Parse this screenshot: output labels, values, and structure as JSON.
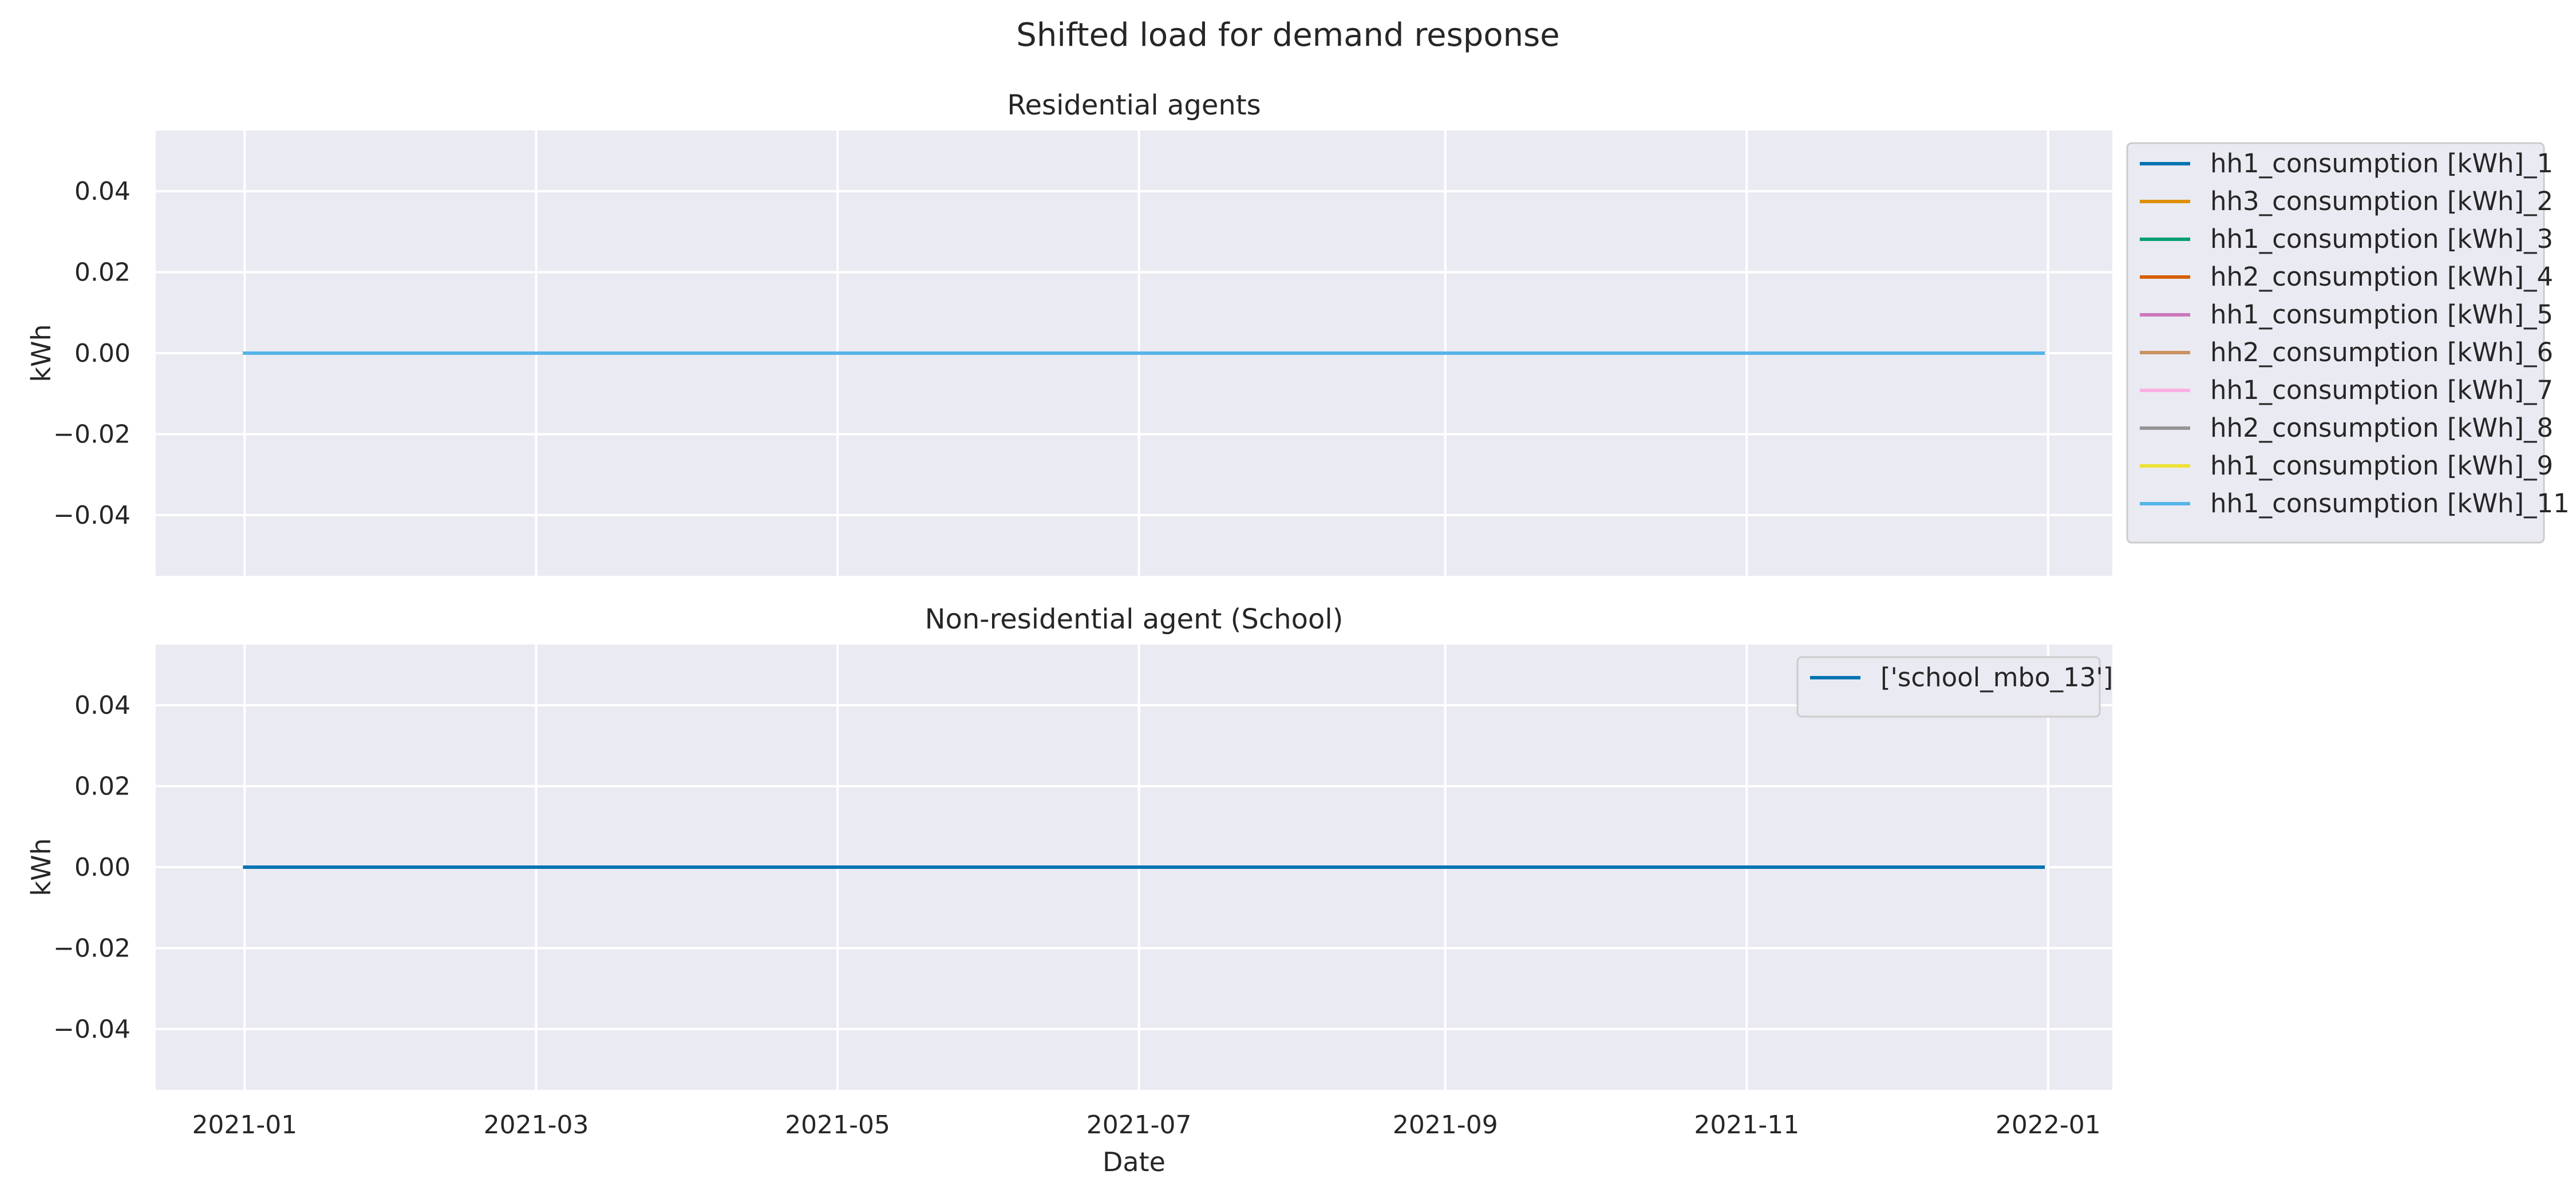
{
  "chart_data": [
    {
      "type": "line",
      "title": "Residential agents",
      "xlabel": "",
      "ylabel": "kWh",
      "xlim": [
        "2020-12-14",
        "2022-01-14"
      ],
      "ylim": [
        -0.055,
        0.055
      ],
      "yticks": [
        -0.04,
        -0.02,
        0.0,
        0.02,
        0.04
      ],
      "ytick_labels": [
        "−0.04",
        "−0.02",
        "0.00",
        "0.02",
        "0.04"
      ],
      "xticks": [
        "2021-01-01",
        "2021-03-01",
        "2021-05-01",
        "2021-07-01",
        "2021-09-01",
        "2021-11-01",
        "2022-01-01"
      ],
      "xtick_labels": [
        "2021-01",
        "2021-03",
        "2021-05",
        "2021-07",
        "2021-09",
        "2021-11",
        "2022-01"
      ],
      "show_xtick_labels": false,
      "grid": true,
      "legend_position": "outside-upper-right",
      "x": [
        "2021-01-01",
        "2021-12-31"
      ],
      "series": [
        {
          "name": "hh1_consumption [kWh]_1",
          "color": "#0173b2",
          "values": [
            0,
            0
          ]
        },
        {
          "name": "hh3_consumption [kWh]_2",
          "color": "#de8f05",
          "values": [
            0,
            0
          ]
        },
        {
          "name": "hh1_consumption [kWh]_3",
          "color": "#029e73",
          "values": [
            0,
            0
          ]
        },
        {
          "name": "hh2_consumption [kWh]_4",
          "color": "#d55e00",
          "values": [
            0,
            0
          ]
        },
        {
          "name": "hh1_consumption [kWh]_5",
          "color": "#cc78bc",
          "values": [
            0,
            0
          ]
        },
        {
          "name": "hh2_consumption [kWh]_6",
          "color": "#ca9161",
          "values": [
            0,
            0
          ]
        },
        {
          "name": "hh1_consumption [kWh]_7",
          "color": "#fbafe4",
          "values": [
            0,
            0
          ]
        },
        {
          "name": "hh2_consumption [kWh]_8",
          "color": "#949494",
          "values": [
            0,
            0
          ]
        },
        {
          "name": "hh1_consumption [kWh]_9",
          "color": "#ece133",
          "values": [
            0,
            0
          ]
        },
        {
          "name": "hh1_consumption [kWh]_11",
          "color": "#56b4e9",
          "values": [
            0,
            0
          ]
        }
      ]
    },
    {
      "type": "line",
      "title": "Non-residential agent (School)",
      "xlabel": "Date",
      "ylabel": "kWh",
      "xlim": [
        "2020-12-14",
        "2022-01-14"
      ],
      "ylim": [
        -0.055,
        0.055
      ],
      "yticks": [
        -0.04,
        -0.02,
        0.0,
        0.02,
        0.04
      ],
      "ytick_labels": [
        "−0.04",
        "−0.02",
        "0.00",
        "0.02",
        "0.04"
      ],
      "xticks": [
        "2021-01-01",
        "2021-03-01",
        "2021-05-01",
        "2021-07-01",
        "2021-09-01",
        "2021-11-01",
        "2022-01-01"
      ],
      "xtick_labels": [
        "2021-01",
        "2021-03",
        "2021-05",
        "2021-07",
        "2021-09",
        "2021-11",
        "2022-01"
      ],
      "show_xtick_labels": true,
      "grid": true,
      "legend_position": "upper-right",
      "x": [
        "2021-01-01",
        "2021-12-31"
      ],
      "series": [
        {
          "name": "['school_mbo_13']",
          "color": "#0173b2",
          "values": [
            0,
            0
          ]
        }
      ]
    }
  ],
  "figure": {
    "suptitle": "Shifted load for demand response",
    "background": "#ffffff",
    "axes_background": "#eaeaf2",
    "grid_color": "#ffffff",
    "legend_background": "#eaeaf2",
    "legend_border": "#cccccc"
  }
}
